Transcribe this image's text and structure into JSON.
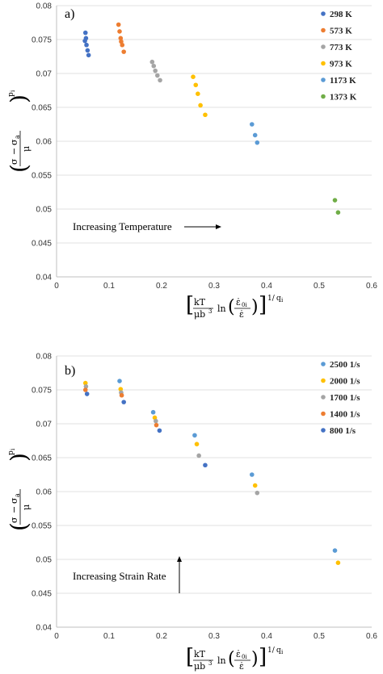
{
  "chart_data": [
    {
      "type": "scatter",
      "panel_label": "a)",
      "ylabel_parts": {
        "sigma": "σ",
        "minus": "−",
        "sigma_a": "σ",
        "a": "a",
        "mu": "μ",
        "p": "p",
        "i": "i"
      },
      "xlabel_parts": {
        "kT": "kT",
        "mub3": "μb",
        "three": "3",
        "ln": "ln",
        "epsdot0": "ε̇",
        "sub0i": "0i",
        "epsdot": "ε̇",
        "one_over": "1/",
        "q": "q",
        "i": "i"
      },
      "xlim": [
        0,
        0.6
      ],
      "ylim": [
        0.04,
        0.08
      ],
      "xticks": [
        "0",
        "0.1",
        "0.2",
        "0.3",
        "0.4",
        "0.5",
        "0.6"
      ],
      "yticks": [
        "0.04",
        "0.045",
        "0.05",
        "0.055",
        "0.06",
        "0.065",
        "0.07",
        "0.075",
        "0.08"
      ],
      "legend_position": "top-right",
      "annotation": "Increasing Temperature",
      "annotation_arrow": "right",
      "series": [
        {
          "name": "298 K",
          "color": "#4472C4",
          "points": [
            [
              0.055,
              0.076
            ],
            [
              0.056,
              0.0752
            ],
            [
              0.054,
              0.0748
            ],
            [
              0.057,
              0.0742
            ],
            [
              0.059,
              0.0734
            ],
            [
              0.061,
              0.0727
            ]
          ]
        },
        {
          "name": "573 K",
          "color": "#ED7D31",
          "points": [
            [
              0.118,
              0.0772
            ],
            [
              0.12,
              0.0762
            ],
            [
              0.122,
              0.0752
            ],
            [
              0.123,
              0.0747
            ],
            [
              0.125,
              0.0742
            ],
            [
              0.128,
              0.0732
            ]
          ]
        },
        {
          "name": "773 K",
          "color": "#A5A5A5",
          "points": [
            [
              0.182,
              0.0717
            ],
            [
              0.185,
              0.0711
            ],
            [
              0.188,
              0.0704
            ],
            [
              0.192,
              0.0697
            ],
            [
              0.197,
              0.069
            ]
          ]
        },
        {
          "name": "973 K",
          "color": "#FFC000",
          "points": [
            [
              0.26,
              0.0695
            ],
            [
              0.265,
              0.0683
            ],
            [
              0.269,
              0.067
            ],
            [
              0.274,
              0.0653
            ],
            [
              0.283,
              0.0639
            ]
          ]
        },
        {
          "name": "1173 K",
          "color": "#5B9BD5",
          "points": [
            [
              0.372,
              0.0625
            ],
            [
              0.378,
              0.0609
            ],
            [
              0.382,
              0.0598
            ]
          ]
        },
        {
          "name": "1373 K",
          "color": "#70AD47",
          "points": [
            [
              0.53,
              0.0513
            ],
            [
              0.536,
              0.0495
            ]
          ]
        }
      ]
    },
    {
      "type": "scatter",
      "panel_label": "b)",
      "ylabel_parts": {
        "sigma": "σ",
        "minus": "−",
        "sigma_a": "σ",
        "a": "a",
        "mu": "μ",
        "p": "p",
        "i": "i"
      },
      "xlabel_parts": {
        "kT": "kT",
        "mub3": "μb",
        "three": "3",
        "ln": "ln",
        "epsdot0": "ε̇",
        "sub0i": "0i",
        "epsdot": "ε̇",
        "one_over": "1/",
        "q": "q",
        "i": "i"
      },
      "xlim": [
        0,
        0.6
      ],
      "ylim": [
        0.04,
        0.08
      ],
      "xticks": [
        "0",
        "0.1",
        "0.2",
        "0.3",
        "0.4",
        "0.5",
        "0.6"
      ],
      "yticks": [
        "0.04",
        "0.045",
        "0.05",
        "0.055",
        "0.06",
        "0.065",
        "0.07",
        "0.075",
        "0.08"
      ],
      "legend_position": "top-right",
      "annotation": "Increasing Strain Rate",
      "annotation_arrow": "up",
      "series": [
        {
          "name": "2500 1/s",
          "color": "#5B9BD5",
          "points": [
            [
              0.12,
              0.0763
            ],
            [
              0.184,
              0.0717
            ],
            [
              0.263,
              0.0683
            ],
            [
              0.372,
              0.0625
            ],
            [
              0.53,
              0.0513
            ]
          ]
        },
        {
          "name": "2000 1/s",
          "color": "#FFC000",
          "points": [
            [
              0.055,
              0.076
            ],
            [
              0.122,
              0.0751
            ],
            [
              0.187,
              0.0709
            ],
            [
              0.267,
              0.067
            ],
            [
              0.378,
              0.0609
            ],
            [
              0.536,
              0.0495
            ]
          ]
        },
        {
          "name": "1700 1/s",
          "color": "#A5A5A5",
          "points": [
            [
              0.056,
              0.0755
            ],
            [
              0.123,
              0.0746
            ],
            [
              0.189,
              0.0704
            ],
            [
              0.271,
              0.0653
            ],
            [
              0.382,
              0.0598
            ]
          ]
        },
        {
          "name": "1400 1/s",
          "color": "#ED7D31",
          "points": [
            [
              0.055,
              0.075
            ],
            [
              0.124,
              0.0742
            ],
            [
              0.19,
              0.0698
            ]
          ]
        },
        {
          "name": "800 1/s",
          "color": "#4472C4",
          "points": [
            [
              0.058,
              0.0744
            ],
            [
              0.128,
              0.0732
            ],
            [
              0.196,
              0.069
            ],
            [
              0.283,
              0.0639
            ]
          ]
        }
      ]
    }
  ]
}
